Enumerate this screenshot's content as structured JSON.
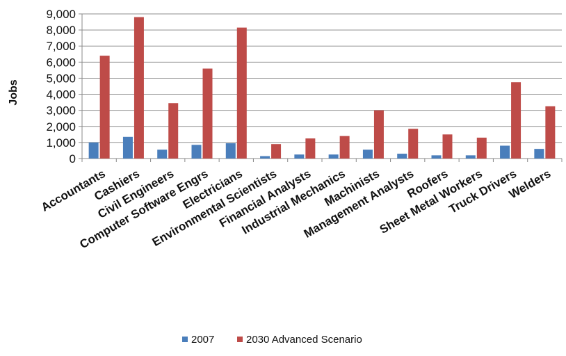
{
  "chart_data": {
    "type": "bar",
    "ylabel": "Jobs",
    "xlabel": "",
    "ylim": [
      0,
      9000
    ],
    "yticks": [
      0,
      1000,
      2000,
      3000,
      4000,
      5000,
      6000,
      7000,
      8000,
      9000
    ],
    "ytick_labels": [
      "0",
      "1,000",
      "2,000",
      "3,000",
      "4,000",
      "5,000",
      "6,000",
      "7,000",
      "8,000",
      "9,000"
    ],
    "grid": true,
    "legend_position": "bottom",
    "categories": [
      "Accountants",
      "Cashiers",
      "Civil Engineers",
      "Computer Software Engrs",
      "Electricians",
      "Environmental Scientists",
      "Financial Analysts",
      "Industrial Mechanics",
      "Machinists",
      "Management Analysts",
      "Roofers",
      "Sheet Metal Workers",
      "Truck Drivers",
      "Welders"
    ],
    "series": [
      {
        "name": "2007",
        "color": "#4a7ebb",
        "values": [
          1000,
          1350,
          550,
          850,
          950,
          150,
          250,
          250,
          550,
          300,
          200,
          200,
          800,
          600
        ]
      },
      {
        "name": "2030 Advanced Scenario",
        "color": "#be4b48",
        "values": [
          6400,
          8800,
          3450,
          5600,
          8150,
          900,
          1250,
          1400,
          3000,
          1850,
          1500,
          1300,
          4750,
          3250
        ]
      }
    ]
  }
}
